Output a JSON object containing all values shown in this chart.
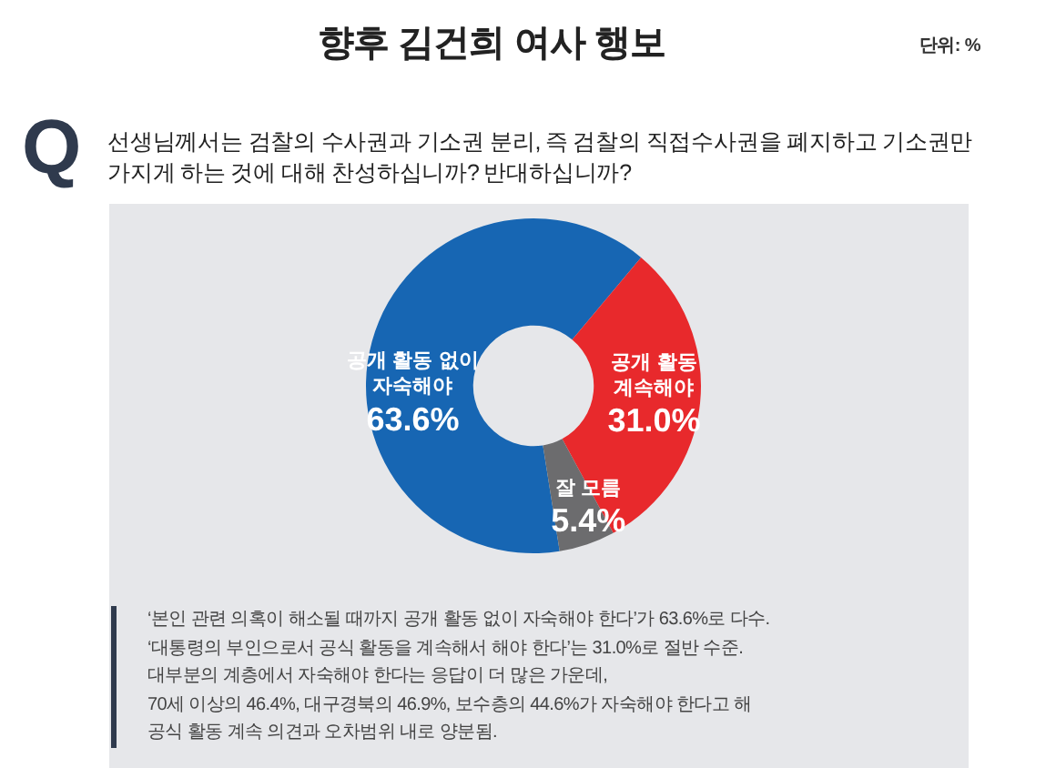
{
  "chart_data": {
    "type": "donut",
    "title": "향후 김건희 여사 행보",
    "subtitle": "선생님께서는 검찰의 수사권과 기소권 분리, 즉 검찰의 직접수사권을 폐지하고 기소권만\n가지게 하는 것에 대해 찬성하십니까? 반대하십니까?",
    "annotations": [
      "단위: %",
      "Q",
      "‘본인 관련 의혹이 해소될 때까지 공개 활동 없이 자숙해야 한다’가 63.6%로 다수.\n‘대통령의 부인으로서 공식 활동을 계속해서 해야 한다’는 31.0%로 절반 수준.\n대부분의 계층에서 자숙해야 한다는 응답이 더 많은 가운데,\n70세 이상의 46.4%, 대구경북의 46.9%, 보수층의 44.6%가 자숙해야 한다고 해\n공식 활동 계속 의견과 오차범위 내로 양분됨."
    ],
    "categories": [
      "공개 활동 없이 자숙해야",
      "공개 활동 계속해야",
      "잘 모름"
    ],
    "values": [
      63.6,
      31.0,
      5.4
    ],
    "value_labels": [
      "63.6%",
      "31.0%",
      "5.4%"
    ],
    "colors": [
      "#1766b3",
      "#e8292c",
      "#6c6c6e"
    ]
  }
}
